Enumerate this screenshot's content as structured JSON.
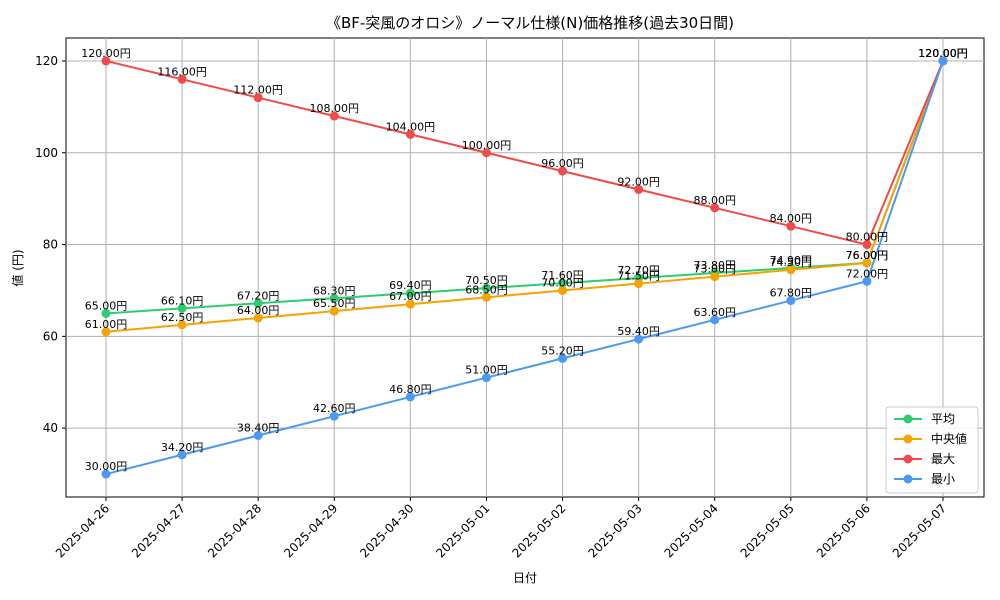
{
  "chart_data": {
    "type": "line",
    "title": "《BF-突風のオロシ》ノーマル仕様(N)価格推移(過去30日間)",
    "xlabel": "日付",
    "ylabel": "値 (円)",
    "categories": [
      "2025-04-26",
      "2025-04-27",
      "2025-04-28",
      "2025-04-29",
      "2025-04-30",
      "2025-05-01",
      "2025-05-02",
      "2025-05-03",
      "2025-05-04",
      "2025-05-05",
      "2025-05-06",
      "2025-05-07"
    ],
    "ylim": [
      25,
      125
    ],
    "yticks": [
      40,
      60,
      80,
      100,
      120
    ],
    "grid": true,
    "legend_position": "bottom-right",
    "value_suffix": "円",
    "series": [
      {
        "name": "平均",
        "color": "#2ecc71",
        "values": [
          65.0,
          66.1,
          67.2,
          68.3,
          69.4,
          70.5,
          71.6,
          72.7,
          73.8,
          74.9,
          76.0,
          120.0
        ]
      },
      {
        "name": "中央値",
        "color": "#f5a300",
        "values": [
          61.0,
          62.5,
          64.0,
          65.5,
          67.0,
          68.5,
          70.0,
          71.5,
          73.0,
          74.5,
          76.0,
          120.0
        ]
      },
      {
        "name": "最大",
        "color": "#f04a4a",
        "values": [
          120.0,
          116.0,
          112.0,
          108.0,
          104.0,
          100.0,
          96.0,
          92.0,
          88.0,
          84.0,
          80.0,
          120.0
        ]
      },
      {
        "name": "最小",
        "color": "#4a9af5",
        "values": [
          30.0,
          34.2,
          38.4,
          42.6,
          46.8,
          51.0,
          55.2,
          59.4,
          63.6,
          67.8,
          72.0,
          120.0
        ]
      }
    ]
  }
}
